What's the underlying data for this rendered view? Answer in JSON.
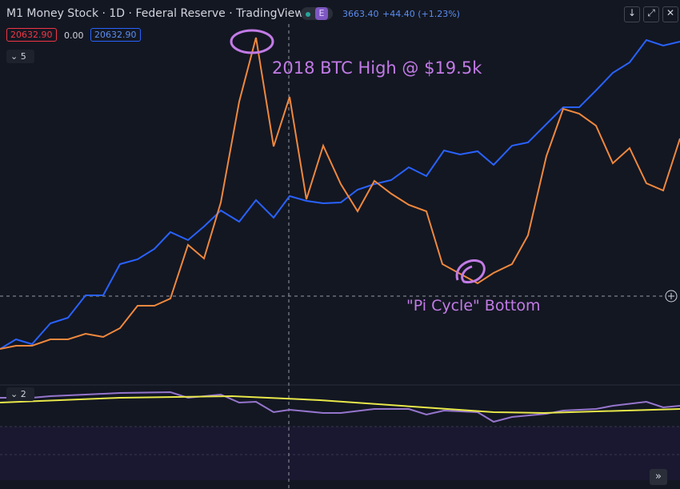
{
  "header": {
    "title": "M1 Money Stock · 1D · Federal Reserve · TradingView",
    "badge": "E",
    "price": "3663.40",
    "change": "+44.40 (+1.23%)"
  },
  "legend": {
    "bid": "20632.90",
    "spread": "0.00",
    "ask": "20632.90",
    "collapse_count": "5"
  },
  "annotations": {
    "high": "2018 BTC High @ $19.5k",
    "bottom": "\"Pi Cycle\" Bottom"
  },
  "lower_pane": {
    "collapse_count": "2"
  }
}
